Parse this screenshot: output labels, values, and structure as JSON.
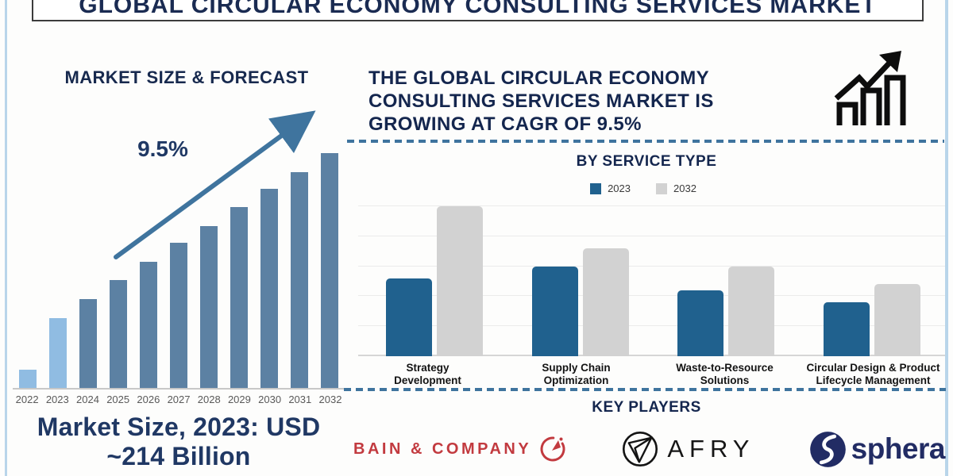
{
  "title": "GLOBAL CIRCULAR ECONOMY CONSULTING SERVICES MARKET",
  "left_panel": {
    "heading": "MARKET SIZE & FORECAST",
    "cagr_label": "9.5%",
    "market_size_line1": "Market Size, 2023: USD",
    "market_size_line2": "~214 Billion"
  },
  "right_panel": {
    "headline_line1": "THE GLOBAL CIRCULAR ECONOMY",
    "headline_line2": "CONSULTING SERVICES MARKET IS",
    "headline_line3": "GROWING AT CAGR OF 9.5%",
    "service_section_title": "BY SERVICE TYPE",
    "key_players_title": "KEY PLAYERS",
    "players": {
      "bain": "BAIN & COMPANY",
      "afry": "AFRY",
      "sphera": "sphera"
    }
  },
  "colors": {
    "navy_text": "#17294E",
    "steel_blue": "#3F749E",
    "bar_light_blue": "#90BCE2",
    "bar_steel_blue": "#5C81A3",
    "bar_2023_blue": "#20618E",
    "bar_2032_gray": "#D2D2D2",
    "bain_red": "#C23A3F",
    "afry_black": "#141414",
    "sphera_navy": "#222C64",
    "year_label_gray": "#595959"
  },
  "chart_data": [
    {
      "name": "market-size-forecast",
      "type": "bar",
      "title": "MARKET SIZE & FORECAST",
      "categories": [
        "2022",
        "2023",
        "2024",
        "2025",
        "2026",
        "2027",
        "2028",
        "2029",
        "2030",
        "2031",
        "2032"
      ],
      "values": [
        8,
        30,
        38,
        46,
        54,
        62,
        69,
        77,
        85,
        92,
        100
      ],
      "units": "relative bar height, % of 2032 bar (no value axis shown)",
      "annotations": [
        "CAGR 9.5%",
        "Market Size, 2023: USD ~214 Billion"
      ],
      "bar_colors": [
        "#90BCE2",
        "#90BCE2",
        "#5C81A3",
        "#5C81A3",
        "#5C81A3",
        "#5C81A3",
        "#5C81A3",
        "#5C81A3",
        "#5C81A3",
        "#5C81A3",
        "#5C81A3"
      ],
      "grid": false,
      "legend": false
    },
    {
      "name": "by-service-type",
      "type": "bar",
      "title": "BY SERVICE TYPE",
      "categories": [
        "Strategy\nDevelopment",
        "Supply Chain\nOptimization",
        "Waste-to-Resource\nSolutions",
        "Circular Design & Product\nLifecycle Management"
      ],
      "series": [
        {
          "name": "2023",
          "color": "#20618E",
          "values": [
            26,
            30,
            22,
            18
          ]
        },
        {
          "name": "2032",
          "color": "#D2D2D2",
          "values": [
            50,
            36,
            30,
            24
          ]
        }
      ],
      "units": "relative units, 1 gridline = 10 (no value axis labels shown)",
      "ylim": [
        0,
        52
      ],
      "grid": true,
      "legend_position": "top"
    }
  ]
}
